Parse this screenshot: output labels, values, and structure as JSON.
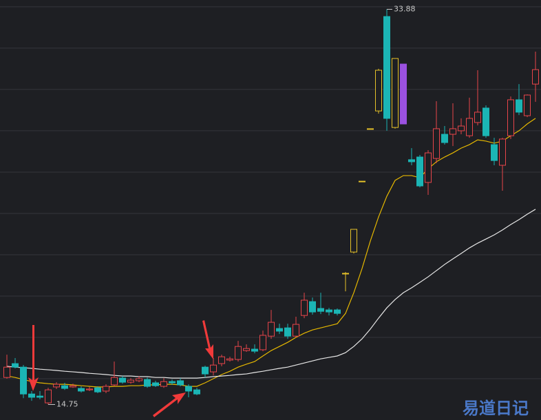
{
  "chart_data": {
    "type": "candlestick",
    "ylim": [
      14,
      34.33
    ],
    "yticks": [
      16,
      18,
      20,
      22,
      24,
      26,
      28,
      30,
      32,
      34
    ],
    "grid": true,
    "open": [
      16.06,
      16.73,
      16.56,
      15.26,
      15.16,
      14.83,
      15.6,
      15.66,
      15.6,
      15.53,
      15.46,
      15.56,
      15.4,
      15.7,
      16.03,
      15.83,
      15.9,
      15.96,
      15.8,
      15.63,
      15.86,
      15.9,
      15.63,
      15.46,
      16.56,
      16.33,
      16.73,
      16.9,
      16.93,
      17.36,
      17.43,
      17.4,
      18.06,
      18.43,
      18.46,
      18.06,
      19.06,
      19.73,
      19.4,
      19.33,
      19.33,
      21.1,
      22.13,
      25.56,
      28.1,
      28.96,
      33.53,
      28.16,
      31.23,
      26.6,
      26.73,
      25.5,
      26.66,
      27.83,
      27.83,
      28.0,
      27.76,
      28.4,
      29.1,
      27.33,
      26.33,
      27.76,
      29.5,
      28.73,
      30.26
    ],
    "high": [
      17.16,
      17.0,
      16.66,
      15.4,
      15.4,
      15.56,
      15.83,
      15.8,
      15.76,
      15.63,
      15.6,
      15.63,
      15.73,
      16.83,
      16.13,
      16.03,
      16.13,
      16.06,
      15.9,
      16.03,
      15.96,
      16.03,
      15.73,
      15.56,
      16.63,
      17.0,
      17.16,
      17.06,
      17.83,
      17.66,
      17.66,
      18.33,
      19.33,
      18.66,
      18.66,
      19.0,
      20.16,
      19.93,
      20.16,
      19.43,
      19.4,
      21.16,
      23.23,
      25.56,
      28.1,
      31.0,
      33.88,
      31.5,
      31.23,
      27.16,
      26.83,
      27.06,
      29.43,
      28.23,
      29.33,
      28.6,
      29.6,
      30.93,
      29.23,
      27.66,
      27.66,
      29.66,
      30.26,
      29.76,
      31.83
    ],
    "low": [
      16.0,
      16.5,
      15.06,
      14.93,
      15.0,
      14.75,
      15.5,
      15.46,
      15.56,
      15.33,
      15.4,
      15.3,
      15.3,
      15.63,
      15.76,
      15.76,
      15.83,
      15.56,
      15.6,
      15.56,
      15.7,
      15.63,
      15.1,
      15.2,
      16.06,
      16.16,
      16.6,
      16.83,
      16.83,
      17.3,
      17.23,
      17.33,
      17.93,
      18.16,
      17.93,
      18.0,
      18.93,
      19.1,
      19.13,
      19.06,
      19.06,
      20.23,
      22.06,
      25.56,
      28.1,
      28.83,
      28.0,
      28.1,
      28.33,
      26.33,
      25.26,
      24.9,
      26.43,
      27.33,
      27.26,
      27.83,
      27.66,
      28.26,
      27.66,
      26.33,
      25.1,
      27.6,
      28.76,
      28.66,
      29.4
    ],
    "close": [
      16.56,
      16.56,
      15.26,
      15.1,
      15.1,
      15.46,
      15.73,
      15.53,
      15.66,
      15.4,
      15.5,
      15.36,
      15.63,
      16.06,
      15.83,
      15.93,
      16.0,
      15.63,
      15.66,
      15.86,
      15.8,
      15.7,
      15.4,
      15.26,
      16.23,
      16.66,
      17.06,
      16.96,
      17.56,
      17.46,
      17.33,
      18.1,
      18.73,
      18.3,
      18.06,
      18.63,
      19.8,
      19.23,
      19.26,
      19.23,
      19.16,
      21.1,
      23.23,
      25.56,
      28.1,
      30.93,
      28.6,
      31.5,
      28.33,
      26.5,
      25.33,
      26.93,
      28.1,
      27.43,
      28.1,
      28.23,
      28.6,
      28.9,
      27.76,
      26.56,
      27.6,
      29.5,
      28.9,
      29.73,
      30.96
    ],
    "candle_colors": [
      "#e8454a",
      "#1bb5b5",
      "#1bb5b5",
      "#1bb5b5",
      "#1bb5b5",
      "#e8454a",
      "#e8454a",
      "#1bb5b5",
      "#e8454a",
      "#1bb5b5",
      "#e8454a",
      "#1bb5b5",
      "#e8454a",
      "#e8454a",
      "#1bb5b5",
      "#e8454a",
      "#e8454a",
      "#1bb5b5",
      "#1bb5b5",
      "#e8454a",
      "#1bb5b5",
      "#1bb5b5",
      "#1bb5b5",
      "#1bb5b5",
      "#1bb5b5",
      "#e8454a",
      "#e8454a",
      "#e8454a",
      "#e8454a",
      "#e8454a",
      "#1bb5b5",
      "#e8454a",
      "#e8454a",
      "#1bb5b5",
      "#1bb5b5",
      "#e8454a",
      "#e8454a",
      "#1bb5b5",
      "#1bb5b5",
      "#1bb5b5",
      "#1bb5b5",
      "#e6c229",
      "#e6c229",
      "#e6c229",
      "#e6c229",
      "#e6c229",
      "#1bb5b5",
      "#e6c229",
      "#9b51e0",
      "#1bb5b5",
      "#1bb5b5",
      "#e8454a",
      "#e8454a",
      "#1bb5b5",
      "#e8454a",
      "#e8454a",
      "#e8454a",
      "#e8454a",
      "#1bb5b5",
      "#1bb5b5",
      "#e8454a",
      "#e8454a",
      "#1bb5b5",
      "#e8454a",
      "#e8454a"
    ],
    "lines": [
      {
        "color": "#e6b800",
        "values": [
          16.13,
          16.06,
          15.96,
          15.86,
          15.8,
          15.76,
          15.73,
          15.73,
          15.7,
          15.66,
          15.63,
          15.6,
          15.6,
          15.63,
          15.63,
          15.66,
          15.66,
          15.7,
          15.7,
          15.73,
          15.73,
          15.7,
          15.63,
          15.63,
          15.8,
          16.0,
          16.2,
          16.36,
          16.56,
          16.7,
          16.83,
          17.1,
          17.36,
          17.56,
          17.76,
          18.0,
          18.2,
          18.36,
          18.46,
          18.56,
          18.66,
          19.16,
          20.16,
          21.33,
          22.66,
          23.83,
          24.83,
          25.6,
          25.83,
          25.83,
          25.73,
          26.16,
          26.5,
          26.73,
          26.93,
          27.16,
          27.33,
          27.56,
          27.5,
          27.4,
          27.5,
          27.76,
          28.0,
          28.33,
          28.6
        ]
      },
      {
        "color": "#e8e8e8",
        "values": [
          16.6,
          16.56,
          16.53,
          16.5,
          16.46,
          16.43,
          16.4,
          16.36,
          16.33,
          16.3,
          16.26,
          16.23,
          16.2,
          16.16,
          16.13,
          16.13,
          16.1,
          16.1,
          16.06,
          16.06,
          16.03,
          16.03,
          16.03,
          16.03,
          16.06,
          16.1,
          16.13,
          16.16,
          16.2,
          16.23,
          16.3,
          16.36,
          16.43,
          16.5,
          16.56,
          16.66,
          16.76,
          16.86,
          16.96,
          17.03,
          17.1,
          17.26,
          17.56,
          17.93,
          18.4,
          18.93,
          19.43,
          19.83,
          20.16,
          20.4,
          20.66,
          20.93,
          21.23,
          21.53,
          21.8,
          22.06,
          22.33,
          22.56,
          22.76,
          22.96,
          23.2,
          23.46,
          23.7,
          23.96,
          24.2
        ]
      }
    ],
    "high_label": 33.88,
    "low_label": 14.75,
    "watermark": "易道日记"
  }
}
